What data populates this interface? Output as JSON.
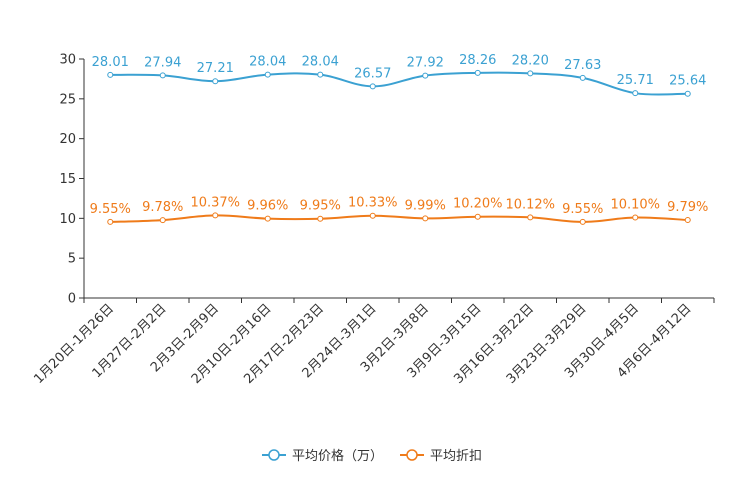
{
  "chart_data": {
    "type": "line",
    "title": "",
    "xlabel": "",
    "ylabel": "",
    "ylim": [
      0,
      30
    ],
    "yticks": [
      "0",
      "5",
      "10",
      "15",
      "20",
      "25",
      "30"
    ],
    "categories": [
      "1月20日-1月26日",
      "1月27日-2月2日",
      "2月3日-2月9日",
      "2月10日-2月16日",
      "2月17日-2月23日",
      "2月24日-3月1日",
      "3月2日-3月8日",
      "3月9日-3月15日",
      "3月16日-3月22日",
      "3月23日-3月29日",
      "3月30日-4月5日",
      "4月6日-4月12日"
    ],
    "series": [
      {
        "name": "平均价格（万）",
        "color": "#3ba1d2",
        "values": [
          28.01,
          27.94,
          27.21,
          28.04,
          28.04,
          26.57,
          27.92,
          28.26,
          28.2,
          27.63,
          25.71,
          25.64
        ],
        "labels": [
          "28.01",
          "27.94",
          "27.21",
          "28.04",
          "28.04",
          "26.57",
          "27.92",
          "28.26",
          "28.20",
          "27.63",
          "25.71",
          "25.64"
        ]
      },
      {
        "name": "平均折扣",
        "color": "#ef7b1a",
        "values": [
          9.55,
          9.78,
          10.37,
          9.96,
          9.95,
          10.33,
          9.99,
          10.2,
          10.12,
          9.55,
          10.1,
          9.79
        ],
        "labels": [
          "9.55%",
          "9.78%",
          "10.37%",
          "9.96%",
          "9.95%",
          "10.33%",
          "9.99%",
          "10.20%",
          "10.12%",
          "9.55%",
          "10.10%",
          "9.79%"
        ]
      }
    ],
    "legend_position": "bottom-center"
  }
}
